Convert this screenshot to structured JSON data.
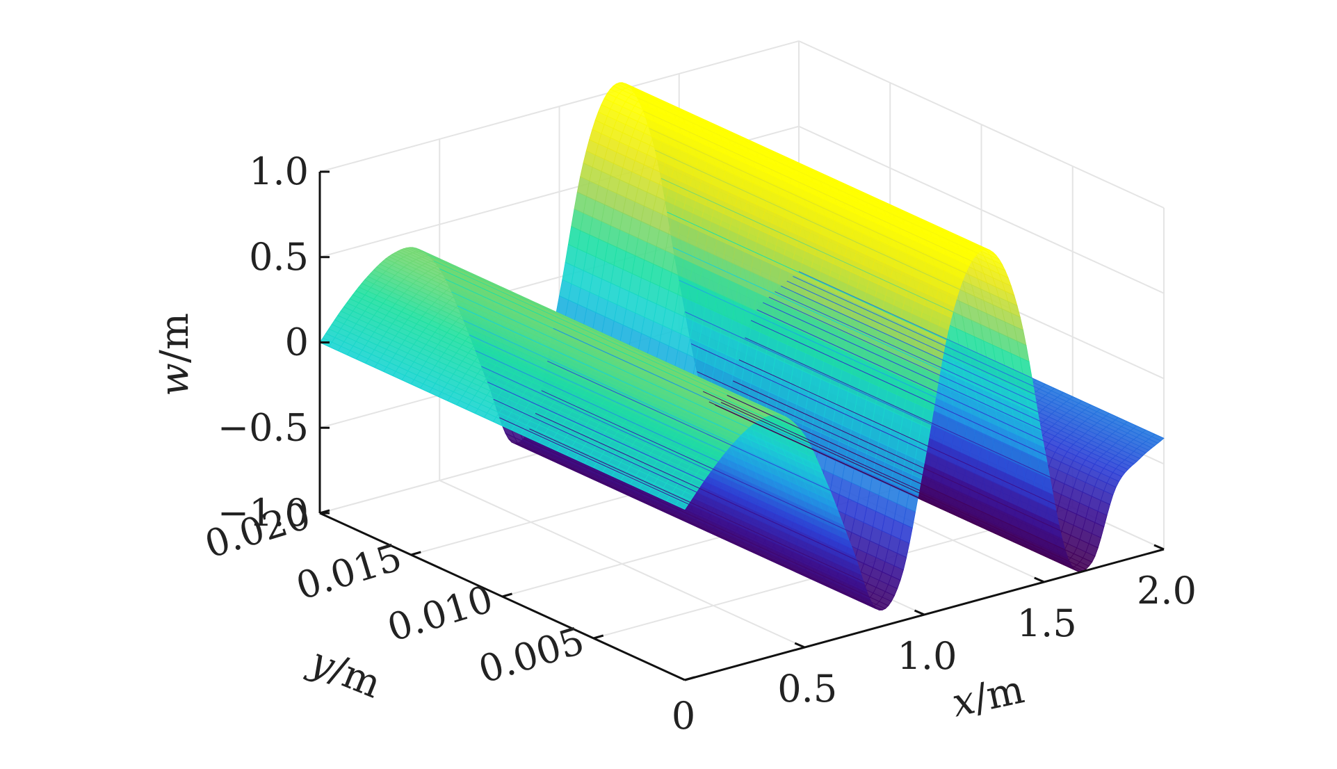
{
  "chart_data": {
    "type": "surface",
    "title": "",
    "xlabel": {
      "var": "x",
      "unit": "/m"
    },
    "ylabel": {
      "var": "y",
      "unit": "/m"
    },
    "zlabel": {
      "var": "w",
      "unit": "/m"
    },
    "xlim": [
      0,
      2.0
    ],
    "ylim": [
      0,
      0.02
    ],
    "zlim": [
      -1.0,
      1.0
    ],
    "x_ticks": [
      0.5,
      1.0,
      1.5,
      2.0
    ],
    "x_tick_labels": [
      "0.5",
      "1.0",
      "1.5",
      "2.0"
    ],
    "y_ticks": [
      0,
      0.005,
      0.01,
      0.015,
      0.02
    ],
    "y_tick_labels": [
      "0",
      "0.005",
      "0.010",
      "0.015",
      "0.020"
    ],
    "z_ticks": [
      -1.0,
      -0.5,
      0,
      0.5,
      1.0
    ],
    "z_tick_labels": [
      "−1.0",
      "−0.5",
      "0",
      "0.5",
      "1.0"
    ],
    "grid": true,
    "colormap": [
      "#440154",
      "#3b0f8f",
      "#2c3fd6",
      "#1f9de6",
      "#18d4d4",
      "#1fe0a0",
      "#9ed45a",
      "#e6e61c",
      "#ffff00"
    ],
    "surface_description": "w varies only along x; constant along y",
    "profile_x": [
      0,
      0.1,
      0.2,
      0.3,
      0.4,
      0.5,
      0.6,
      0.7,
      0.8,
      0.9,
      1.0,
      1.1,
      1.2,
      1.3,
      1.4,
      1.5,
      1.6,
      1.7,
      1.8,
      1.9,
      2.0
    ],
    "profile_w": [
      0,
      0.17,
      0.31,
      0.4,
      0.4,
      0.24,
      -0.1,
      -0.5,
      -0.89,
      -0.76,
      -0.11,
      0.63,
      1.0,
      0.99,
      0.59,
      -0.21,
      -0.9,
      -0.96,
      -0.56,
      -0.43,
      -0.35
    ]
  }
}
